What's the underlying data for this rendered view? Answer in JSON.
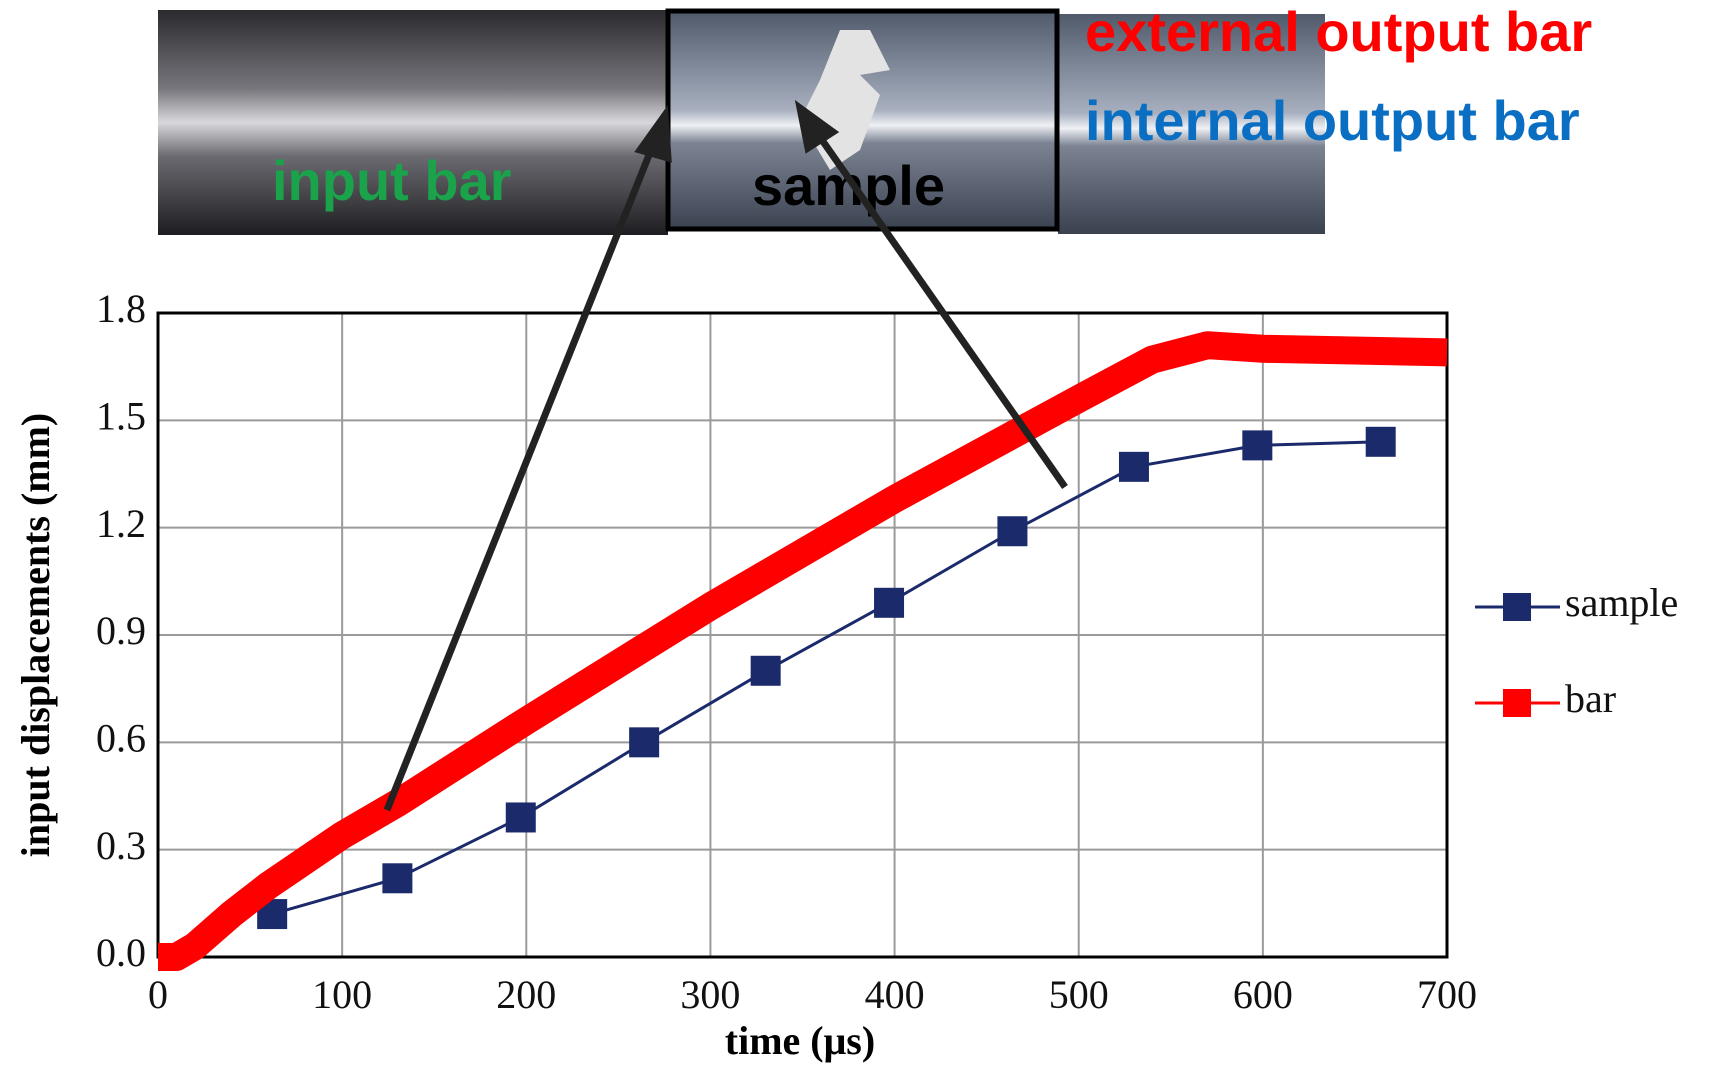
{
  "chart_data": {
    "type": "line",
    "x_label": "time (μs)",
    "y_label": "input displacements (mm)",
    "xlim": [
      0,
      700
    ],
    "xticks": [
      0,
      100,
      200,
      300,
      400,
      500,
      600,
      700
    ],
    "ylim": [
      0,
      1.8
    ],
    "yticks": [
      {
        "value": 0,
        "label": "0.0"
      },
      0.3,
      0.6,
      0.9,
      1.2,
      1.5,
      1.8
    ],
    "grid": true,
    "legend": "right",
    "series": [
      {
        "name": "sample",
        "color": "#1b2a6b",
        "marker": "square",
        "x": [
          62,
          130,
          197,
          264,
          330,
          397,
          464,
          530,
          597,
          664
        ],
        "values": [
          0.12,
          0.22,
          0.39,
          0.6,
          0.8,
          0.99,
          1.19,
          1.37,
          1.43,
          1.44
        ]
      },
      {
        "name": "bar",
        "color": "#ff0000",
        "marker": "none",
        "x": [
          0,
          10,
          20,
          40,
          60,
          100,
          130,
          200,
          300,
          400,
          500,
          540,
          570,
          600,
          700
        ],
        "values": [
          0,
          0,
          0.03,
          0.12,
          0.2,
          0.34,
          0.43,
          0.66,
          0.98,
          1.28,
          1.56,
          1.67,
          1.71,
          1.7,
          1.69
        ]
      }
    ]
  },
  "photo": {
    "input": "input bar",
    "sample": "sample",
    "external": "external output bar",
    "internal": "internal output bar"
  }
}
